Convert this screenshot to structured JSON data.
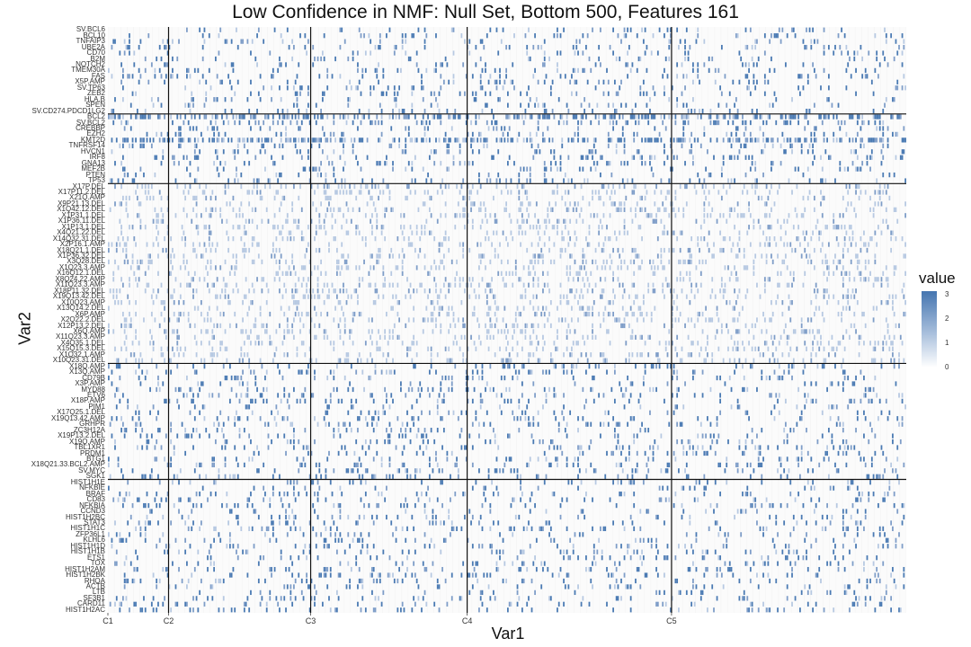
{
  "chart_data": {
    "type": "heatmap",
    "title": "Low Confidence in NMF: Null Set, Bottom 500, Features 161",
    "xlabel": "Var1",
    "ylabel": "Var2",
    "x_ticks": [
      "C1",
      "C2",
      "C3",
      "C4",
      "C5"
    ],
    "y_labels": [
      "SV.BCL6",
      "BCL10",
      "TNFAIP3",
      "UBE2A",
      "CD70",
      "B2M",
      "NOTCH2",
      "TMEM30A",
      "FAS",
      "X5P.AMP",
      "SV.TP63",
      "ZEB2",
      "HLA.B",
      "SPEN",
      "SV.CD274.PDCD1LG2",
      "BCL2",
      "SV.BCL2",
      "CREBBP",
      "EZH2",
      "KMT2D",
      "TNFRSF14",
      "HVCN1",
      "IRF8",
      "GNA13",
      "MEF2B",
      "PTEN",
      "TP53",
      "X17P.DEL",
      "X17P11.2.DEL",
      "X21Q.AMP",
      "X9P21.13.DEL",
      "X1Q42.12.DEL",
      "X1P31.1.DEL",
      "X1P36.11.DEL",
      "X1P13.1.DEL",
      "X4Q21.22.DEL",
      "X14Q32.31.DEL",
      "X2P16.1.AMP",
      "X18Q21.1.DEL",
      "X1P36.32.DEL",
      "X3Q28.DEL",
      "X1Q23.3.AMP",
      "X16Q12.1.DEL",
      "X8Q24.22.AMP",
      "X11Q23.3.AMP",
      "X18P11.32.DEL",
      "X19Q13.42.DEL",
      "X10Q23.AMP",
      "X13Q14.2.DEL",
      "X6P.AMP",
      "X2Q22.2.DEL",
      "X12P13.2.DEL",
      "X6Q.AMP",
      "X11Q23.3.AMP",
      "X4Q35.1.DEL",
      "X15Q15.3.DEL",
      "X1Q32.1.AMP",
      "X10Q23.31.DEL",
      "X18Q.AMP",
      "X13Q.AMP",
      "CD79B",
      "X3P.AMP",
      "MYD88",
      "ETV6",
      "X18P.AMP",
      "PIM1",
      "X17Q25.1.DEL",
      "X19Q13.42.AMP",
      "GRHPR",
      "ZC3H12A",
      "X19P13.2.DEL",
      "X19Q.AMP",
      "TBL1XR1",
      "PRDM1",
      "BTG1",
      "X18Q21.33.BCL2.AMP",
      "SV.MYC",
      "SGK1",
      "HIST1H1E",
      "NFKBIE",
      "BRAF",
      "CD83",
      "NFKBIA",
      "CCND3",
      "HIST1H2BC",
      "STAT3",
      "HIST1H1C",
      "ZFP36L1",
      "KLHL6",
      "HIST1H1D",
      "HIST1H1B",
      "ETS1",
      "TOX",
      "HIST1H2AM",
      "HIST1H2BK",
      "RHOA",
      "ACTB",
      "LTB",
      "SF3B1",
      "CARD11",
      "HIST1H2AC"
    ],
    "display_labels": [
      "SV.BCL6",
      "BCL10",
      "TNFAIP3",
      "UBE2A",
      "CD70",
      "B2M",
      "NOTCH2",
      "TMEM30A",
      "FAS",
      "X5P.AMP",
      "SV.TP63",
      "ZEB2",
      "HLA.B",
      "SPEN",
      "SV.CD274.PDCD1LG2",
      "BCL2",
      "SV.BCL2",
      "CREBBP",
      "EZH2",
      "KMT2D",
      "TNFRSF14",
      "HVCN1",
      "IRF8",
      "GNA13",
      "MEF2B",
      "PTEN",
      "TP53",
      "X17P.DEL",
      "X17P11.2.DEL",
      "X21Q.AMP",
      "X9P21.13.DEL",
      "X1Q42.12.DEL",
      "X1P31.1.DEL",
      "X1P36.11.DEL",
      "X1P13.1.DEL",
      "X4Q21.22.DEL",
      "X14Q32.31.DEL",
      "X2P16.1.AMP",
      "X18Q21.1.DEL",
      "X1P36.32.DEL",
      "X3Q28.DEL",
      "X1Q23.3.AMP",
      "X16Q12.1.DEL",
      "X8Q24.22.AMP",
      "X11Q23.3.AMP",
      "X18P11.32.DEL",
      "X19Q13.42.DEL",
      "X10Q23.AMP",
      "X13Q14.2.DEL",
      "X6P.AMP",
      "X2Q22.2.DEL",
      "X12P13.2.DEL",
      "X6Q.AMP",
      "X11Q23.3.AMP",
      "X4Q35.1.DEL",
      "X15Q15.3.DEL",
      "X1Q32.1.AMP",
      "X10Q23.31.DEL",
      "X18Q.AMP",
      "X13Q.AMP",
      "CD79B",
      "X3P.AMP",
      "MYD88",
      "ETV6",
      "X18P.AMP",
      "PIM1",
      "X17Q25.1.DEL",
      "X19Q13.42.AMP",
      "GRHPR",
      "ZC3H12A",
      "X19P13.2.DEL",
      "X19Q.AMP",
      "TBL1XR1",
      "PRDM1",
      "BTG1",
      "X18Q21.33.BCL2.AMP",
      "SV.MYC",
      "SGK1",
      "HIST1H1E",
      "NFKBIE",
      "BRAF",
      "CD83",
      "NFKBIA",
      "CCND3",
      "HIST1H2BC",
      "STAT3",
      "HIST1H1C",
      "ZFP36L1",
      "KLHL6",
      "HIST1H1D",
      "HIST1H1B",
      "ETS1",
      "TOX",
      "HIST1H2AM",
      "HIST1H2BK",
      "RHOA",
      "ACTB",
      "LTB",
      "SF3B1",
      "CARD11",
      "HIST1H2AC"
    ],
    "column_groups": [
      {
        "label": "C1",
        "start": 0,
        "end": 38
      },
      {
        "label": "C2",
        "start": 38,
        "end": 127
      },
      {
        "label": "C3",
        "start": 127,
        "end": 225
      },
      {
        "label": "C4",
        "start": 225,
        "end": 353
      },
      {
        "label": "C5",
        "start": 353,
        "end": 500
      }
    ],
    "n_columns": 500,
    "row_groups": [
      {
        "start": 0,
        "end": 15
      },
      {
        "start": 15,
        "end": 27
      },
      {
        "start": 27,
        "end": 58
      },
      {
        "start": 58,
        "end": 78
      },
      {
        "start": 78,
        "end": 101
      }
    ],
    "legend": {
      "title": "value",
      "min": 0,
      "max": 3,
      "ticks": [
        "0",
        "1",
        "2",
        "3"
      ],
      "placement": "right"
    },
    "colors": {
      "high": "#4575b0",
      "mid": "#9fb8d8",
      "low": "#ffffff",
      "grid": "#ececec",
      "divider": "#111111"
    }
  }
}
